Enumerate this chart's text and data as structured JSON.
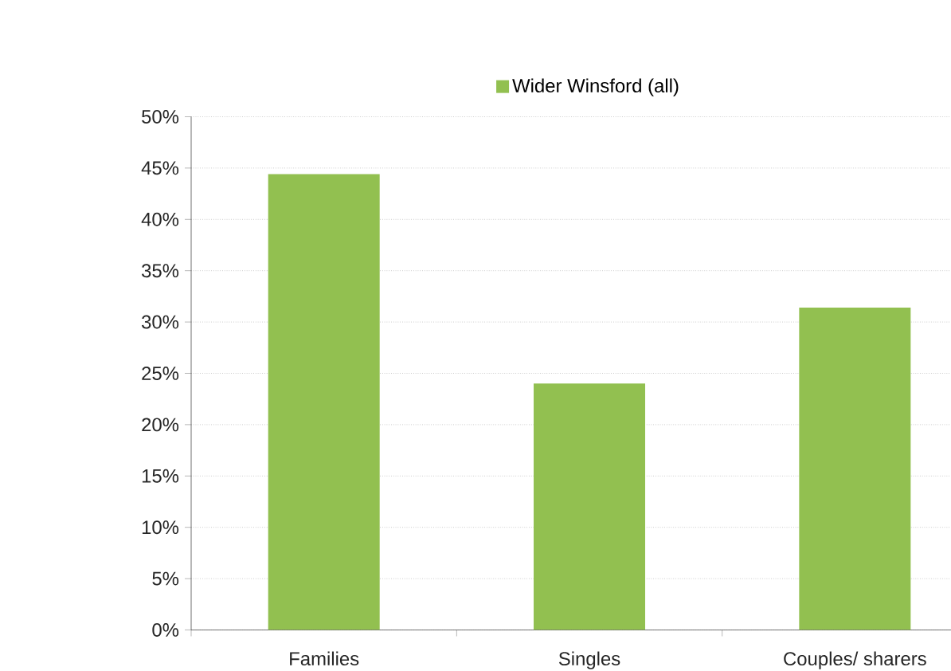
{
  "chart_data": {
    "type": "bar",
    "categories": [
      "Families",
      "Singles",
      "Couples/ sharers"
    ],
    "series": [
      {
        "name": "Wider Winsford (all)",
        "color": "#92c050",
        "values": [
          44.4,
          24.0,
          31.4
        ]
      }
    ],
    "ylim": [
      0,
      50
    ],
    "yticks": [
      {
        "value": 0,
        "label": "0%"
      },
      {
        "value": 5,
        "label": "5%"
      },
      {
        "value": 10,
        "label": "10%"
      },
      {
        "value": 15,
        "label": "15%"
      },
      {
        "value": 20,
        "label": "20%"
      },
      {
        "value": 25,
        "label": "25%"
      },
      {
        "value": 30,
        "label": "30%"
      },
      {
        "value": 35,
        "label": "35%"
      },
      {
        "value": 40,
        "label": "40%"
      },
      {
        "value": 45,
        "label": "45%"
      },
      {
        "value": 50,
        "label": "50%"
      }
    ],
    "grid": "y",
    "legend": "top"
  }
}
